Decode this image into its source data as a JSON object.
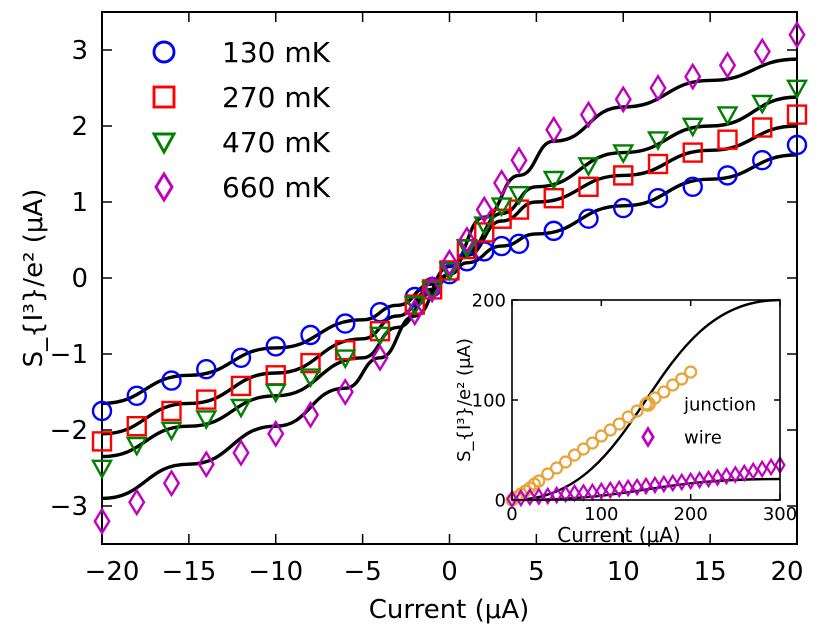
{
  "chart_data": [
    {
      "type": "scatter",
      "xlabel": "Current (μA)",
      "ylabel": "S_{I³}/e² (μA)",
      "xlim": [
        -20,
        20
      ],
      "ylim": [
        -3.5,
        3.5
      ],
      "xticks": [
        -20,
        -15,
        -10,
        -5,
        0,
        5,
        10,
        15,
        20
      ],
      "yticks": [
        -3,
        -2,
        -1,
        0,
        1,
        2,
        3
      ],
      "xtick_labels": [
        "−20",
        "−15",
        "−10",
        "−5",
        "0",
        "5",
        "10",
        "15",
        "20"
      ],
      "ytick_labels": [
        "−3",
        "−2",
        "−1",
        "0",
        "1",
        "2",
        "3"
      ],
      "legend_position": "top-left",
      "series": [
        {
          "name": "130 mK",
          "marker": "circle",
          "color": "#0000ff",
          "x": [
            -20,
            -18,
            -16,
            -14,
            -12,
            -10,
            -8,
            -6,
            -4,
            -2,
            -1,
            0,
            1,
            2,
            3,
            4,
            6,
            8,
            10,
            12,
            14,
            16,
            18,
            20
          ],
          "y": [
            -1.75,
            -1.55,
            -1.35,
            -1.2,
            -1.05,
            -0.9,
            -0.75,
            -0.6,
            -0.45,
            -0.25,
            -0.12,
            0.05,
            0.22,
            0.35,
            0.42,
            0.45,
            0.62,
            0.78,
            0.92,
            1.05,
            1.2,
            1.35,
            1.55,
            1.75
          ]
        },
        {
          "name": "270 mK",
          "marker": "square",
          "color": "#ff0000",
          "x": [
            -20,
            -18,
            -16,
            -14,
            -12,
            -10,
            -8,
            -6,
            -4,
            -2,
            -1,
            0,
            1,
            2,
            3,
            4,
            6,
            8,
            10,
            12,
            14,
            16,
            18,
            20
          ],
          "y": [
            -2.15,
            -1.95,
            -1.75,
            -1.6,
            -1.42,
            -1.28,
            -1.12,
            -0.95,
            -0.7,
            -0.35,
            -0.15,
            0.1,
            0.38,
            0.6,
            0.78,
            0.9,
            1.05,
            1.2,
            1.35,
            1.5,
            1.65,
            1.82,
            1.98,
            2.15
          ]
        },
        {
          "name": "470 mK",
          "marker": "triangle-down",
          "color": "#008000",
          "x": [
            -20,
            -18,
            -16,
            -14,
            -12,
            -10,
            -8,
            -6,
            -4,
            -2,
            -1,
            0,
            1,
            2,
            3,
            4,
            6,
            8,
            10,
            12,
            14,
            16,
            18,
            20
          ],
          "y": [
            -2.5,
            -2.2,
            -2.0,
            -1.85,
            -1.7,
            -1.5,
            -1.3,
            -1.05,
            -0.75,
            -0.35,
            -0.15,
            0.1,
            0.4,
            0.7,
            0.95,
            1.1,
            1.3,
            1.48,
            1.65,
            1.82,
            2.0,
            2.15,
            2.3,
            2.5
          ]
        },
        {
          "name": "660 mK",
          "marker": "diamond",
          "color": "#bf00bf",
          "x": [
            -20,
            -18,
            -16,
            -14,
            -12,
            -10,
            -8,
            -6,
            -4,
            -2,
            -1,
            0,
            1,
            2,
            3,
            4,
            6,
            8,
            10,
            12,
            14,
            16,
            18,
            20
          ],
          "y": [
            -3.2,
            -2.95,
            -2.7,
            -2.45,
            -2.3,
            -2.05,
            -1.8,
            -1.5,
            -1.05,
            -0.45,
            -0.15,
            0.2,
            0.5,
            0.9,
            1.25,
            1.55,
            1.95,
            2.15,
            2.35,
            2.5,
            2.65,
            2.8,
            2.98,
            3.2
          ]
        }
      ],
      "fits": [
        {
          "series": "130 mK",
          "color": "#000000",
          "x": [
            -20,
            -15,
            -10,
            -5,
            -3,
            -1,
            0,
            1,
            3,
            5,
            10,
            15,
            20
          ],
          "y": [
            -1.65,
            -1.28,
            -0.92,
            -0.55,
            -0.36,
            -0.08,
            0.05,
            0.2,
            0.42,
            0.58,
            0.95,
            1.3,
            1.62
          ]
        },
        {
          "series": "270 mK",
          "color": "#000000",
          "x": [
            -20,
            -15,
            -10,
            -5,
            -3,
            -1,
            0,
            1,
            3,
            5,
            10,
            15,
            20
          ],
          "y": [
            -2.05,
            -1.65,
            -1.25,
            -0.8,
            -0.5,
            -0.15,
            0.05,
            0.3,
            0.75,
            1.0,
            1.35,
            1.68,
            2.0
          ]
        },
        {
          "series": "470 mK",
          "color": "#000000",
          "x": [
            -20,
            -15,
            -10,
            -5,
            -3,
            -1,
            0,
            1,
            3,
            5,
            10,
            15,
            20
          ],
          "y": [
            -2.35,
            -1.95,
            -1.55,
            -1.05,
            -0.65,
            -0.2,
            0.05,
            0.35,
            0.85,
            1.2,
            1.65,
            2.0,
            2.38
          ]
        },
        {
          "series": "660 mK",
          "color": "#000000",
          "x": [
            -20,
            -15,
            -10,
            -6,
            -4,
            -2,
            0,
            2,
            4,
            6,
            10,
            15,
            20
          ],
          "y": [
            -2.9,
            -2.45,
            -1.95,
            -1.45,
            -1.05,
            -0.5,
            0.15,
            0.8,
            1.35,
            1.8,
            2.25,
            2.6,
            2.88
          ]
        }
      ]
    },
    {
      "type": "scatter",
      "inset": true,
      "xlabel": "Current (μA)",
      "ylabel": "S_{I³}/e² (μA)",
      "xlim": [
        0,
        300
      ],
      "ylim": [
        0,
        200
      ],
      "xticks": [
        0,
        100,
        200,
        300
      ],
      "yticks": [
        0,
        100,
        200
      ],
      "xtick_labels": [
        "0",
        "100",
        "200",
        "300"
      ],
      "ytick_labels": [
        "0",
        "100",
        "200"
      ],
      "legend_position": "bottom-right",
      "series": [
        {
          "name": "junction",
          "marker": "circle",
          "color": "#e8a33a",
          "x": [
            0,
            5,
            10,
            15,
            20,
            25,
            30,
            40,
            50,
            60,
            70,
            80,
            90,
            100,
            110,
            120,
            130,
            140,
            150,
            160,
            170,
            180,
            190,
            200
          ],
          "y": [
            0,
            3,
            6,
            9,
            12,
            16,
            19,
            26,
            32,
            38,
            45,
            51,
            57,
            64,
            70,
            76,
            83,
            89,
            96,
            102,
            108,
            115,
            121,
            128
          ]
        },
        {
          "name": "wire",
          "marker": "diamond",
          "color": "#bf00bf",
          "x": [
            0,
            10,
            20,
            30,
            40,
            50,
            60,
            70,
            80,
            90,
            100,
            110,
            120,
            130,
            140,
            150,
            160,
            170,
            180,
            190,
            200,
            210,
            220,
            230,
            240,
            250,
            260,
            270,
            280,
            290,
            300
          ],
          "y": [
            1,
            2,
            3,
            3.5,
            4,
            5,
            6,
            7,
            7.5,
            8,
            9,
            10,
            11,
            12,
            13,
            14,
            15,
            16,
            17,
            18,
            19,
            20,
            21,
            22.5,
            24,
            25.5,
            27,
            29,
            31,
            33,
            35
          ]
        }
      ],
      "fits": [
        {
          "series": "junction",
          "color": "#000000",
          "x": [
            0,
            320
          ],
          "y": [
            0,
            205
          ]
        },
        {
          "series": "wire",
          "color": "#000000",
          "x": [
            0,
            300
          ],
          "y": [
            0,
            21
          ]
        }
      ]
    }
  ]
}
